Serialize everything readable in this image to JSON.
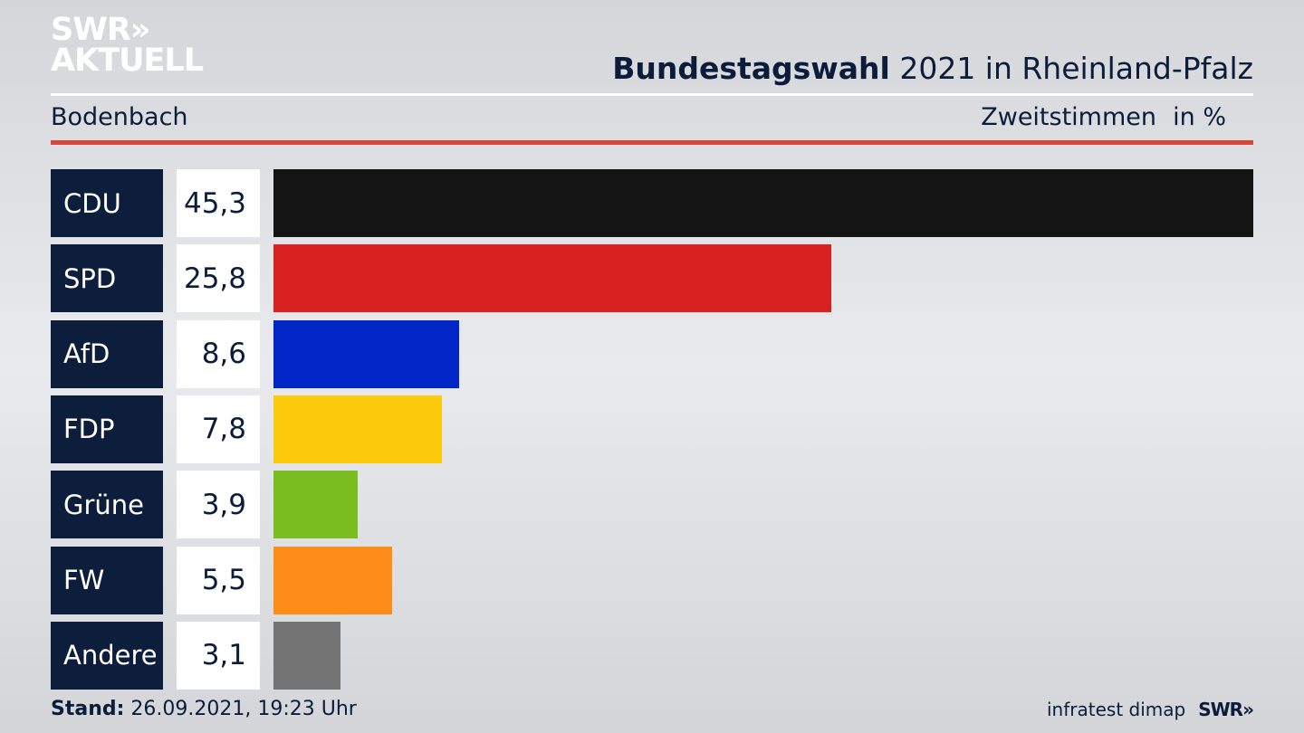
{
  "header": {
    "logo_line1": "SWR»",
    "logo_line2": "AKTUELL",
    "title_bold": "Bundestagswahl",
    "title_rest": " 2021 in Rheinland-Pfalz",
    "region": "Bodenbach",
    "vote_type": "Zweitstimmen",
    "unit": "in %"
  },
  "chart_data": {
    "type": "bar",
    "orientation": "horizontal",
    "categories": [
      "CDU",
      "SPD",
      "AfD",
      "FDP",
      "Grüne",
      "FW",
      "Andere"
    ],
    "values": [
      45.3,
      25.8,
      8.6,
      7.8,
      3.9,
      5.5,
      3.1
    ],
    "value_labels": [
      "45,3",
      "25,8",
      "8,6",
      "7,8",
      "3,9",
      "5,5",
      "3,1"
    ],
    "colors": [
      "#141414",
      "#d82121",
      "#0026c8",
      "#fdcb0d",
      "#79bd1f",
      "#fd8c19",
      "#747474"
    ],
    "title": "Bundestagswahl 2021 in Rheinland-Pfalz",
    "xlabel": "",
    "ylabel": ""
  },
  "footer": {
    "stand_label": "Stand:",
    "stand_value": " 26.09.2021, 19:23 Uhr",
    "source": "infratest dimap",
    "brand": "SWR»"
  }
}
